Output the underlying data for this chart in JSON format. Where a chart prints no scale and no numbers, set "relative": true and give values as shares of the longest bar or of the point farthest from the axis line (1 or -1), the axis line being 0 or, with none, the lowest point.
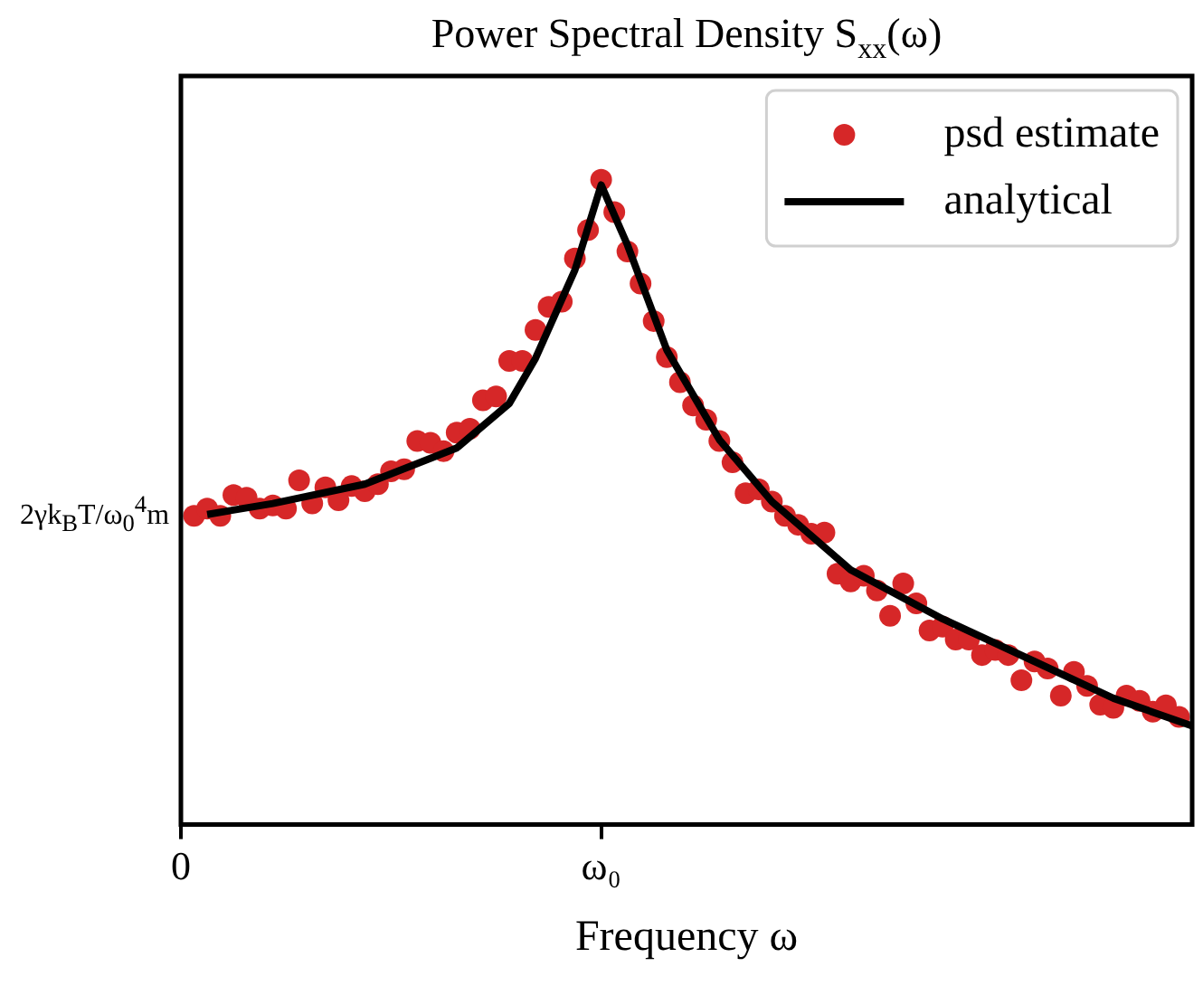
{
  "chart_data": {
    "type": "line",
    "title": "Power Spectral Density S$_{xx}$(ω)",
    "xlabel": "Frequency ω",
    "relative": true,
    "legend": "top right",
    "categories": [
      "0",
      null,
      null,
      null,
      null,
      null,
      null,
      null,
      null,
      null,
      null,
      null,
      null,
      null,
      null,
      null,
      null,
      null,
      null,
      null,
      null,
      null,
      null,
      null,
      null,
      null,
      null,
      null,
      null,
      null,
      null,
      null,
      "ω₀",
      null,
      null,
      null,
      null,
      null,
      null,
      null,
      null,
      null,
      null,
      null,
      null,
      null,
      null,
      null,
      null,
      null,
      null,
      null,
      null,
      null,
      null,
      null,
      null,
      null,
      null,
      null,
      null,
      null,
      null,
      null,
      null,
      null,
      null,
      null,
      null,
      null,
      null,
      null,
      null,
      null,
      null,
      null,
      null,
      null
    ],
    "annotations": [
      "2γk$_{B}$T/ω$_{0}$$^{4}$m"
    ],
    "series": [
      {
        "name": "psd estimate",
        "type": "scatter",
        "color": "#d62728",
        "marker": "circle",
        "values": [
          null,
          0.479,
          0.49,
          0.479,
          0.511,
          0.507,
          0.49,
          0.495,
          0.49,
          0.534,
          0.498,
          0.523,
          0.503,
          0.525,
          0.517,
          0.528,
          0.548,
          0.551,
          0.595,
          0.592,
          0.579,
          0.608,
          0.614,
          0.658,
          0.664,
          0.719,
          0.719,
          0.767,
          0.803,
          0.811,
          0.878,
          0.922,
          1,
          0.95,
          0.889,
          0.839,
          0.781,
          0.725,
          0.686,
          0.65,
          0.628,
          0.595,
          0.562,
          0.514,
          0.52,
          0.501,
          0.479,
          0.465,
          0.451,
          0.453,
          0.389,
          0.377,
          0.386,
          0.363,
          0.324,
          0.374,
          0.343,
          0.301,
          0.307,
          0.287,
          0.287,
          0.263,
          0.271,
          0.263,
          0.224,
          0.253,
          0.242,
          0.2,
          0.237,
          0.215,
          0.186,
          0.181,
          0.2,
          0.192,
          0.175,
          0.185,
          0.167,
          null
        ]
      },
      {
        "name": "analytical",
        "type": "line",
        "color": "#000000",
        "marker": "none",
        "line_style": "solid",
        "values": [
          null,
          null,
          0.481,
          null,
          null,
          null,
          null,
          0.498,
          null,
          null,
          null,
          null,
          null,
          null,
          0.528,
          null,
          null,
          null,
          null,
          null,
          null,
          0.584,
          null,
          null,
          null,
          0.653,
          null,
          0.723,
          null,
          null,
          0.86,
          null,
          0.992,
          null,
          0.899,
          null,
          null,
          0.736,
          null,
          null,
          null,
          0.597,
          null,
          null,
          null,
          0.501,
          null,
          null,
          null,
          null,
          null,
          0.395,
          null,
          null,
          null,
          null,
          null,
          null,
          0.319,
          null,
          null,
          null,
          null,
          null,
          null,
          0.253,
          null,
          null,
          null,
          null,
          null,
          0.196,
          null,
          null,
          null,
          null,
          null,
          0.153
        ]
      }
    ]
  }
}
